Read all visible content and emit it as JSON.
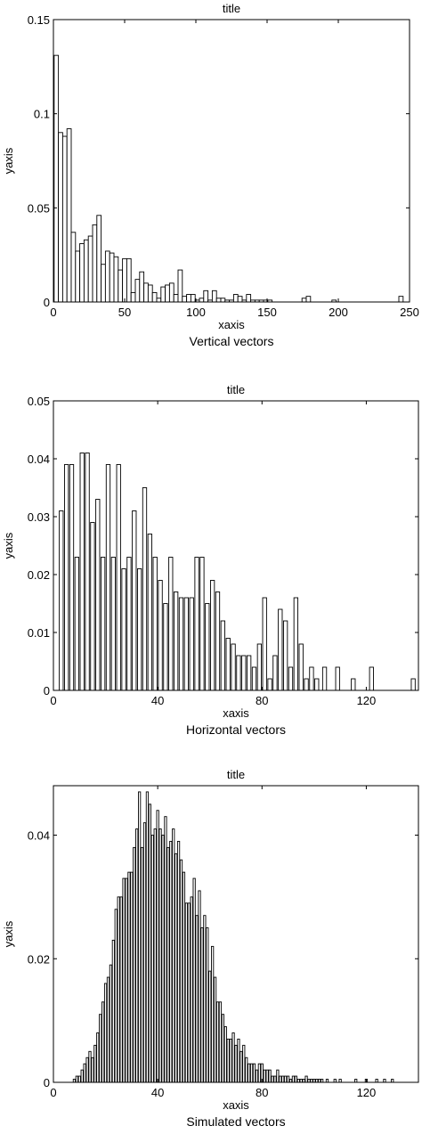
{
  "chart_data": [
    {
      "type": "bar",
      "title": "title",
      "xlabel": "xaxis",
      "ylabel": "yaxis",
      "caption": "Vertical vectors",
      "xlim": [
        0,
        250
      ],
      "ylim": [
        0,
        0.15
      ],
      "xticks": [
        0,
        50,
        100,
        150,
        200,
        250
      ],
      "yticks": [
        0,
        0.05,
        0.1,
        0.15
      ],
      "xtick_labels": [
        "0",
        "50",
        "100",
        "150",
        "200",
        "250"
      ],
      "ytick_labels": [
        "0",
        "0.05",
        "0.1",
        "0.15"
      ],
      "bar_width": 3,
      "grid": false,
      "x": [
        2,
        5,
        8,
        11,
        14,
        17,
        20,
        23,
        26,
        29,
        32,
        35,
        38,
        41,
        44,
        47,
        50,
        53,
        56,
        59,
        62,
        65,
        68,
        71,
        74,
        77,
        80,
        83,
        86,
        89,
        92,
        95,
        98,
        101,
        104,
        107,
        110,
        113,
        116,
        119,
        122,
        125,
        128,
        131,
        134,
        137,
        140,
        143,
        146,
        149,
        152,
        176,
        179,
        197,
        244
      ],
      "values": [
        0.131,
        0.09,
        0.088,
        0.092,
        0.037,
        0.027,
        0.031,
        0.033,
        0.035,
        0.041,
        0.046,
        0.02,
        0.027,
        0.026,
        0.024,
        0.017,
        0.023,
        0.023,
        0.005,
        0.012,
        0.016,
        0.01,
        0.009,
        0.005,
        0.002,
        0.008,
        0.009,
        0.01,
        0.004,
        0.017,
        0.003,
        0.004,
        0.004,
        0.001,
        0.002,
        0.006,
        0.001,
        0.006,
        0.002,
        0.002,
        0.001,
        0.001,
        0.004,
        0.003,
        0.001,
        0.004,
        0.001,
        0.001,
        0.001,
        0.001,
        0.001,
        0.002,
        0.003,
        0.001,
        0.003
      ]
    },
    {
      "type": "bar",
      "title": "title",
      "xlabel": "xaxis",
      "ylabel": "yaxis",
      "caption": "Horizontal vectors",
      "xlim": [
        0,
        140
      ],
      "ylim": [
        0,
        0.05
      ],
      "xticks": [
        0,
        40,
        80,
        120
      ],
      "yticks": [
        0,
        0.01,
        0.02,
        0.03,
        0.04,
        0.05
      ],
      "xtick_labels": [
        "0",
        "40",
        "80",
        "120"
      ],
      "ytick_labels": [
        "0",
        "0.01",
        "0.02",
        "0.03",
        "0.04",
        "0.05"
      ],
      "bar_width": 1.5,
      "grid": false,
      "x": [
        3,
        5,
        7,
        9,
        11,
        13,
        15,
        17,
        19,
        21,
        23,
        25,
        27,
        29,
        31,
        33,
        35,
        37,
        39,
        41,
        43,
        45,
        47,
        49,
        51,
        53,
        55,
        57,
        59,
        61,
        63,
        65,
        67,
        69,
        71,
        73,
        75,
        77,
        79,
        81,
        83,
        85,
        87,
        89,
        91,
        93,
        95,
        97,
        99,
        101,
        104,
        109,
        115,
        122,
        138
      ],
      "values": [
        0.031,
        0.039,
        0.039,
        0.023,
        0.041,
        0.041,
        0.029,
        0.033,
        0.023,
        0.039,
        0.023,
        0.039,
        0.021,
        0.023,
        0.031,
        0.021,
        0.035,
        0.027,
        0.023,
        0.019,
        0.015,
        0.023,
        0.017,
        0.016,
        0.016,
        0.016,
        0.023,
        0.023,
        0.015,
        0.019,
        0.017,
        0.012,
        0.009,
        0.008,
        0.006,
        0.006,
        0.006,
        0.004,
        0.008,
        0.016,
        0.002,
        0.006,
        0.014,
        0.012,
        0.004,
        0.016,
        0.008,
        0.002,
        0.004,
        0.002,
        0.004,
        0.004,
        0.002,
        0.004,
        0.002
      ]
    },
    {
      "type": "bar",
      "title": "title",
      "xlabel": "xaxis",
      "ylabel": "yaxis",
      "caption": "Simulated vectors",
      "xlim": [
        0,
        140
      ],
      "ylim": [
        0,
        0.048
      ],
      "xticks": [
        0,
        40,
        80,
        120
      ],
      "yticks": [
        0,
        0.02,
        0.04
      ],
      "xtick_labels": [
        "0",
        "40",
        "80",
        "120"
      ],
      "ytick_labels": [
        "0",
        "0.02",
        "0.04"
      ],
      "bar_width": 0.8,
      "grid": false,
      "x": [
        8,
        9,
        10,
        11,
        12,
        13,
        14,
        15,
        16,
        17,
        18,
        19,
        20,
        21,
        22,
        23,
        24,
        25,
        26,
        27,
        28,
        29,
        30,
        31,
        32,
        33,
        34,
        35,
        36,
        37,
        38,
        39,
        40,
        41,
        42,
        43,
        44,
        45,
        46,
        47,
        48,
        49,
        50,
        51,
        52,
        53,
        54,
        55,
        56,
        57,
        58,
        59,
        60,
        61,
        62,
        63,
        64,
        65,
        66,
        67,
        68,
        69,
        70,
        71,
        72,
        73,
        74,
        75,
        76,
        77,
        78,
        79,
        80,
        81,
        82,
        83,
        84,
        85,
        86,
        87,
        88,
        89,
        90,
        91,
        92,
        93,
        94,
        95,
        96,
        97,
        98,
        99,
        100,
        101,
        102,
        103,
        105,
        108,
        110,
        116,
        120,
        124,
        127,
        130
      ],
      "values": [
        0.0005,
        0.001,
        0.001,
        0.002,
        0.003,
        0.004,
        0.005,
        0.004,
        0.006,
        0.008,
        0.011,
        0.013,
        0.016,
        0.017,
        0.019,
        0.023,
        0.028,
        0.03,
        0.03,
        0.033,
        0.033,
        0.034,
        0.034,
        0.038,
        0.041,
        0.047,
        0.038,
        0.042,
        0.047,
        0.045,
        0.04,
        0.041,
        0.044,
        0.041,
        0.04,
        0.043,
        0.038,
        0.039,
        0.041,
        0.037,
        0.039,
        0.036,
        0.034,
        0.029,
        0.029,
        0.03,
        0.033,
        0.027,
        0.031,
        0.025,
        0.027,
        0.025,
        0.018,
        0.022,
        0.017,
        0.013,
        0.013,
        0.011,
        0.009,
        0.007,
        0.007,
        0.008,
        0.006,
        0.007,
        0.005,
        0.006,
        0.004,
        0.003,
        0.003,
        0.003,
        0.002,
        0.003,
        0.003,
        0.002,
        0.002,
        0.002,
        0.001,
        0.001,
        0.002,
        0.001,
        0.001,
        0.001,
        0.001,
        0.0005,
        0.001,
        0.001,
        0.0005,
        0.0005,
        0.0005,
        0.001,
        0.0005,
        0.0005,
        0.0005,
        0.0005,
        0.0005,
        0.0005,
        0.0005,
        0.0005,
        0.0005,
        0.0005,
        0.0005,
        0.0005,
        0.0005,
        0.0005
      ]
    }
  ]
}
